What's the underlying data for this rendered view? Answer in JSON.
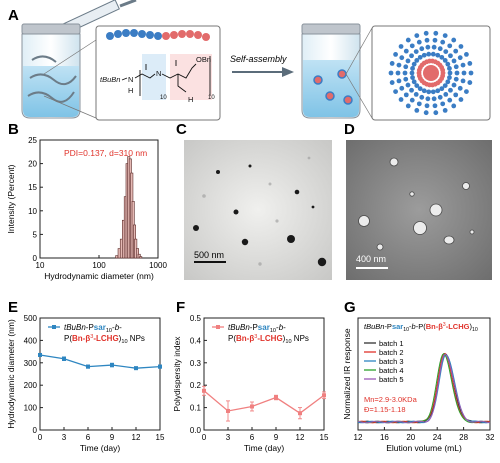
{
  "panels": {
    "A": "A",
    "B": "B",
    "C": "C",
    "D": "D",
    "E": "E",
    "F": "F",
    "G": "G"
  },
  "panel_a": {
    "self_assembly": "Self-assembly",
    "chem": {
      "tbubn": "tBuBn",
      "n1": "N",
      "h1": "H",
      "sub1": "10",
      "n2": "N",
      "obn": "OBn",
      "h2": "H",
      "sub2": "10"
    }
  },
  "panel_b": {
    "annotation": "PDI=0.137, d=310 nm"
  },
  "panel_c": {
    "scalebar": "500 nm"
  },
  "panel_d": {
    "scalebar": "400 nm"
  },
  "panel_e": {
    "legend_line1": "tBuBn-Psar10-b-",
    "legend_line2": "P(Bn-β3-LCHG)10 NPs"
  },
  "panel_f": {
    "legend_line1": "tBuBn-Psar10-b-",
    "legend_line2": "P(Bn-β3-LCHG)10 NPs"
  },
  "panel_g": {
    "title": "tBuBn-Psar10-b-P(Bn-β3-LCHG)10",
    "mn": "Mn=2.9-3.0KDa",
    "dispersity": "Đ=1.15-1.18"
  },
  "colors": {
    "red": "#e0332b",
    "blue": "#2e86c1",
    "pink": "#f08080",
    "bar": "#e5b9b4"
  },
  "chart_data": [
    {
      "panel": "B",
      "type": "bar",
      "xlabel": "Hydrodynamic diameter (nm)",
      "ylabel": "Intensity (Percent)",
      "xscale": "log",
      "xlim": [
        10,
        1000
      ],
      "ylim": [
        0,
        25
      ],
      "xticks": [
        "10",
        "100",
        "1000"
      ],
      "yticks": [
        "0",
        "5",
        "10",
        "15",
        "20",
        "25"
      ],
      "x": [
        200,
        220,
        240,
        260,
        280,
        300,
        320,
        340,
        360,
        380,
        400,
        420,
        450,
        480,
        510
      ],
      "values": [
        0.5,
        2,
        4,
        8,
        13,
        20,
        21.5,
        21,
        18,
        12,
        7,
        4,
        2,
        0.8,
        0.3
      ]
    },
    {
      "panel": "E",
      "type": "line",
      "xlabel": "Time (day)",
      "ylabel": "Hydrodynamic diameter (nm)",
      "xlim": [
        0,
        15
      ],
      "ylim": [
        0,
        500
      ],
      "xticks": [
        "0",
        "3",
        "6",
        "9",
        "12",
        "15"
      ],
      "yticks": [
        "0",
        "100",
        "200",
        "300",
        "400",
        "500"
      ],
      "series": [
        {
          "name": "tBuBn-Psar10-b-P(Bn-β3-LCHG)10 NPs",
          "x": [
            0,
            3,
            6,
            9,
            12,
            15
          ],
          "y": [
            335,
            318,
            283,
            290,
            276,
            283
          ],
          "err": [
            6,
            8,
            7,
            8,
            6,
            7
          ]
        }
      ]
    },
    {
      "panel": "F",
      "type": "line",
      "xlabel": "Time (day)",
      "ylabel": "Polydispersity index",
      "xlim": [
        0,
        15
      ],
      "ylim": [
        0,
        0.5
      ],
      "xticks": [
        "0",
        "3",
        "6",
        "9",
        "12",
        "15"
      ],
      "yticks": [
        "0.0",
        "0.1",
        "0.2",
        "0.3",
        "0.4",
        "0.5"
      ],
      "series": [
        {
          "name": "tBuBn-Psar10-b-P(Bn-β3-LCHG)10 NPs",
          "x": [
            0,
            3,
            6,
            9,
            12,
            15
          ],
          "y": [
            0.175,
            0.085,
            0.105,
            0.145,
            0.075,
            0.155
          ],
          "err": [
            0.02,
            0.045,
            0.02,
            0.01,
            0.025,
            0.015
          ]
        }
      ]
    },
    {
      "panel": "G",
      "type": "line",
      "xlabel": "Elution volume (mL)",
      "ylabel": "Normalized IR response",
      "xlim": [
        12,
        32
      ],
      "xticks": [
        "12",
        "16",
        "20",
        "24",
        "28",
        "32"
      ],
      "series": [
        {
          "name": "batch 1",
          "color": "#333333",
          "peak": 25.2,
          "shift": 0.0
        },
        {
          "name": "batch 2",
          "color": "#e0332b",
          "peak": 25.1,
          "shift": 0.05
        },
        {
          "name": "batch 3",
          "color": "#2e86c1",
          "peak": 25.3,
          "shift": -0.05
        },
        {
          "name": "batch 4",
          "color": "#2ca02c",
          "peak": 25.0,
          "shift": 0.1
        },
        {
          "name": "batch 5",
          "color": "#9b59b6",
          "peak": 25.2,
          "shift": -0.1
        }
      ]
    }
  ]
}
